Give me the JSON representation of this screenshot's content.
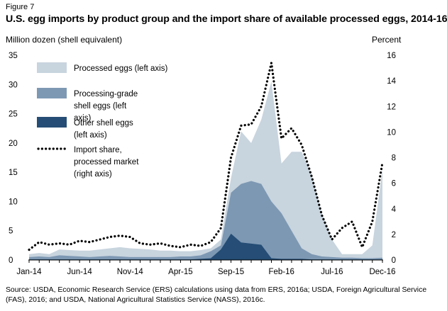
{
  "figure_label": "Figure 7",
  "chart_data": {
    "type": "area",
    "title": "U.S. egg imports by product group and the import share of available processed eggs, 2014-16",
    "ylabel": "Million dozen (shell equivalent)",
    "y2label": "Percent",
    "ylim": [
      0,
      35
    ],
    "y2lim": [
      0,
      16
    ],
    "yticks": [
      "0",
      "5",
      "10",
      "15",
      "20",
      "25",
      "30",
      "35"
    ],
    "y2ticks": [
      "0",
      "2",
      "4",
      "6",
      "8",
      "10",
      "12",
      "14",
      "16"
    ],
    "categories": [
      "Jan-14",
      "Feb-14",
      "Mar-14",
      "Apr-14",
      "May-14",
      "Jun-14",
      "Jul-14",
      "Aug-14",
      "Sep-14",
      "Oct-14",
      "Nov-14",
      "Dec-14",
      "Jan-15",
      "Feb-15",
      "Mar-15",
      "Apr-15",
      "May-15",
      "Jun-15",
      "Jul-15",
      "Aug-15",
      "Sep-15",
      "Oct-15",
      "Nov-15",
      "Dec-15",
      "Jan-16",
      "Feb-16",
      "Mar-16",
      "Apr-16",
      "May-16",
      "Jun-16",
      "Jul-16",
      "Aug-16",
      "Sep-16",
      "Oct-16",
      "Nov-16",
      "Dec-16"
    ],
    "xticks": [
      "Jan-14",
      "Jun-14",
      "Nov-14",
      "Apr-15",
      "Sep-15",
      "Feb-16",
      "Jul-16",
      "Dec-16"
    ],
    "series": [
      {
        "name": "Processed eggs (left axis)",
        "axis": "left",
        "color": "#c8d4de",
        "values": [
          1.0,
          1.2,
          1.0,
          1.8,
          1.7,
          1.6,
          1.6,
          1.8,
          2.0,
          2.2,
          2.0,
          1.9,
          1.8,
          1.6,
          1.6,
          1.5,
          1.5,
          1.7,
          2.0,
          3.5,
          14.0,
          22.0,
          20.0,
          24.0,
          30.5,
          16.5,
          18.5,
          18.5,
          14.5,
          8.0,
          3.5,
          1.0,
          1.0,
          1.0,
          2.5,
          15.5
        ]
      },
      {
        "name": "Processing-grade shell eggs (left axis)",
        "axis": "left",
        "color": "#7d98b3",
        "values": [
          0.5,
          0.6,
          0.5,
          0.8,
          0.7,
          0.6,
          0.5,
          0.6,
          0.7,
          0.6,
          0.5,
          0.5,
          0.5,
          0.5,
          0.5,
          0.6,
          0.6,
          0.8,
          1.5,
          2.5,
          11.5,
          13.0,
          13.5,
          13.0,
          10.0,
          8.0,
          5.0,
          2.0,
          1.0,
          0.6,
          0.5,
          0.4,
          0.4,
          0.3,
          0.3,
          0.4
        ]
      },
      {
        "name": "Other shell eggs (left axis)",
        "axis": "left",
        "color": "#254d75",
        "values": [
          0.1,
          0.1,
          0.1,
          0.1,
          0.1,
          0.1,
          0.1,
          0.1,
          0.1,
          0.1,
          0.1,
          0.1,
          0.1,
          0.1,
          0.1,
          0.1,
          0.1,
          0.2,
          0.3,
          1.8,
          4.5,
          3.0,
          2.8,
          2.6,
          0.3,
          0.2,
          0.2,
          0.2,
          0.1,
          0.1,
          0.1,
          0.1,
          0.1,
          0.1,
          0.1,
          0.1
        ]
      },
      {
        "name": "Import share, processed market (right axis)",
        "axis": "right",
        "color": "#000000",
        "values": [
          0.8,
          1.4,
          1.2,
          1.3,
          1.2,
          1.5,
          1.4,
          1.6,
          1.8,
          1.9,
          1.8,
          1.3,
          1.2,
          1.3,
          1.1,
          1.0,
          1.2,
          1.1,
          1.4,
          2.5,
          8.0,
          10.5,
          10.6,
          12.0,
          15.4,
          9.5,
          10.3,
          9.0,
          6.5,
          3.5,
          1.6,
          2.5,
          3.0,
          1.0,
          3.0,
          7.6
        ]
      }
    ],
    "legend": [
      {
        "label": "Processed eggs (left axis)",
        "swatch": "patch",
        "color": "#c8d4de"
      },
      {
        "label": "Processing-grade shell eggs (left axis)",
        "swatch": "patch",
        "color": "#7d98b3"
      },
      {
        "label": "Other shell eggs (left axis)",
        "swatch": "patch",
        "color": "#254d75"
      },
      {
        "label": "Import share, processed market (right axis)",
        "swatch": "dots",
        "color": "#000000"
      }
    ],
    "legend_placement": "top-left"
  },
  "source_note": "Source: USDA, Economic Research Service (ERS) calculations using data from ERS, 2016a; USDA, Foreign Agricultural Service (FAS), 2016; and USDA, National Agricultural Statistics Service (NASS), 2016c."
}
